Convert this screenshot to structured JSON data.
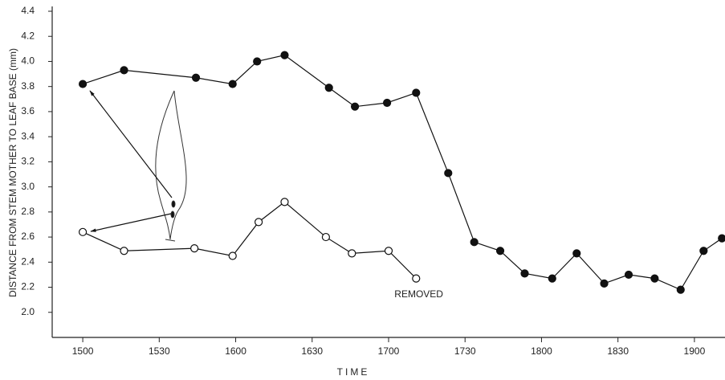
{
  "chart_data": {
    "type": "line",
    "y_label": "DISTANCE FROM STEM MOTHER TO LEAF BASE (mm)",
    "x_label": "TIME",
    "annotation": "REMOVED",
    "xlim": [
      14.8,
      19.2
    ],
    "xticks": [
      {
        "value": 15,
        "label": "1500"
      },
      {
        "value": 15.5,
        "label": "1530"
      },
      {
        "value": 16,
        "label": "1600"
      },
      {
        "value": 16.5,
        "label": "1630"
      },
      {
        "value": 17,
        "label": "1700"
      },
      {
        "value": 17.5,
        "label": "1730"
      },
      {
        "value": 18,
        "label": "1800"
      },
      {
        "value": 18.5,
        "label": "1830"
      },
      {
        "value": 19,
        "label": "1900"
      }
    ],
    "ylim": [
      1.8,
      4.4
    ],
    "yticks": [
      {
        "value": 2,
        "label": "2.0"
      },
      2.2,
      2.4,
      2.6,
      2.8,
      {
        "value": 3,
        "label": "3.0"
      },
      3.2,
      3.4,
      3.6,
      3.8,
      {
        "value": 4,
        "label": "4.0"
      },
      4.2,
      4.4
    ],
    "series": [
      {
        "color": "#111",
        "marker": "filled",
        "x": [
          15.0,
          15.27,
          15.74,
          15.98,
          16.14,
          16.32,
          16.61,
          16.78,
          16.99,
          17.18,
          17.39,
          17.56,
          17.73,
          17.89,
          18.07,
          18.23,
          18.41,
          18.57,
          18.74,
          18.91,
          19.06,
          19.18
        ],
        "values": [
          3.82,
          3.93,
          3.87,
          3.82,
          4.0,
          4.05,
          3.79,
          3.64,
          3.67,
          3.75,
          3.11,
          2.56,
          2.49,
          2.31,
          2.27,
          2.47,
          2.23,
          2.3,
          2.27,
          2.18,
          2.49,
          2.59
        ]
      },
      {
        "color": "#111",
        "marker": "open",
        "x": [
          15.0,
          15.27,
          15.73,
          15.98,
          16.15,
          16.32,
          16.59,
          16.76,
          17.0,
          17.18
        ],
        "values": [
          2.64,
          2.49,
          2.51,
          2.45,
          2.72,
          2.88,
          2.6,
          2.47,
          2.49,
          2.27
        ]
      }
    ]
  }
}
